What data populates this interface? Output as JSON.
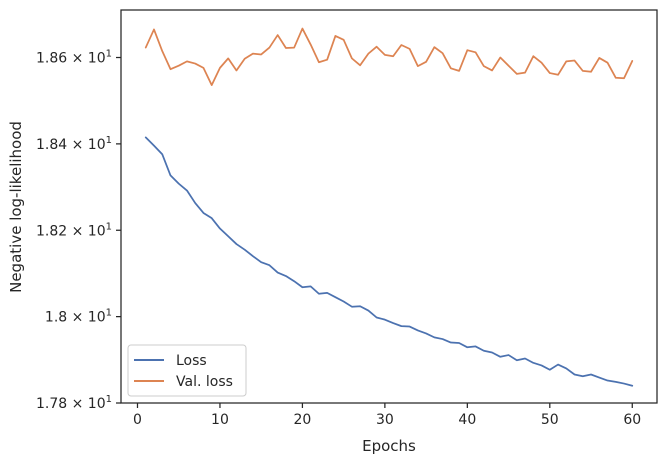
{
  "chart_data": {
    "type": "line",
    "xlabel": "Epochs",
    "ylabel": "Negative log-likelihood",
    "xlim": [
      -2,
      63
    ],
    "ylim": [
      17.8,
      18.71
    ],
    "x_ticks": [
      0,
      10,
      20,
      30,
      40,
      50,
      60
    ],
    "y_ticks": [
      {
        "value": 17.8,
        "mantissa": "1.78",
        "base": "10",
        "exp": "1"
      },
      {
        "value": 18.0,
        "mantissa": "1.8",
        "base": "10",
        "exp": "1"
      },
      {
        "value": 18.2,
        "mantissa": "1.82",
        "base": "10",
        "exp": "1"
      },
      {
        "value": 18.4,
        "mantissa": "1.84",
        "base": "10",
        "exp": "1"
      },
      {
        "value": 18.6,
        "mantissa": "1.86",
        "base": "10",
        "exp": "1"
      }
    ],
    "grid": false,
    "legend_position": "lower-left",
    "x": [
      1,
      2,
      3,
      4,
      5,
      6,
      7,
      8,
      9,
      10,
      11,
      12,
      13,
      14,
      15,
      16,
      17,
      18,
      19,
      20,
      21,
      22,
      23,
      24,
      25,
      26,
      27,
      28,
      29,
      30,
      31,
      32,
      33,
      34,
      35,
      36,
      37,
      38,
      39,
      40,
      41,
      42,
      43,
      44,
      45,
      46,
      47,
      48,
      49,
      50,
      51,
      52,
      53,
      54,
      55,
      56,
      57,
      58,
      59,
      60
    ],
    "series": [
      {
        "name": "Loss",
        "color": "#4c72b0",
        "values": [
          18.415,
          18.396,
          18.376,
          18.327,
          18.308,
          18.292,
          18.263,
          18.24,
          18.228,
          18.204,
          18.186,
          18.168,
          18.155,
          18.14,
          18.126,
          18.119,
          18.102,
          18.094,
          18.082,
          18.068,
          18.07,
          18.053,
          18.055,
          18.045,
          18.035,
          18.023,
          18.024,
          18.014,
          17.998,
          17.993,
          17.985,
          17.978,
          17.977,
          17.968,
          17.961,
          17.952,
          17.948,
          17.94,
          17.939,
          17.929,
          17.931,
          17.921,
          17.917,
          17.907,
          17.911,
          17.899,
          17.903,
          17.893,
          17.887,
          17.877,
          17.889,
          17.88,
          17.866,
          17.862,
          17.866,
          17.859,
          17.852,
          17.849,
          17.845,
          17.84
        ]
      },
      {
        "name": "Val. loss",
        "color": "#dd8452",
        "values": [
          18.623,
          18.665,
          18.615,
          18.573,
          18.581,
          18.591,
          18.586,
          18.576,
          18.536,
          18.576,
          18.598,
          18.57,
          18.597,
          18.609,
          18.607,
          18.623,
          18.652,
          18.622,
          18.623,
          18.667,
          18.63,
          18.589,
          18.595,
          18.65,
          18.641,
          18.598,
          18.582,
          18.609,
          18.625,
          18.606,
          18.603,
          18.629,
          18.62,
          18.58,
          18.59,
          18.624,
          18.61,
          18.575,
          18.569,
          18.617,
          18.612,
          18.58,
          18.57,
          18.6,
          18.581,
          18.562,
          18.565,
          18.603,
          18.588,
          18.564,
          18.56,
          18.591,
          18.593,
          18.569,
          18.567,
          18.599,
          18.588,
          18.553,
          18.552,
          18.592
        ]
      }
    ]
  }
}
